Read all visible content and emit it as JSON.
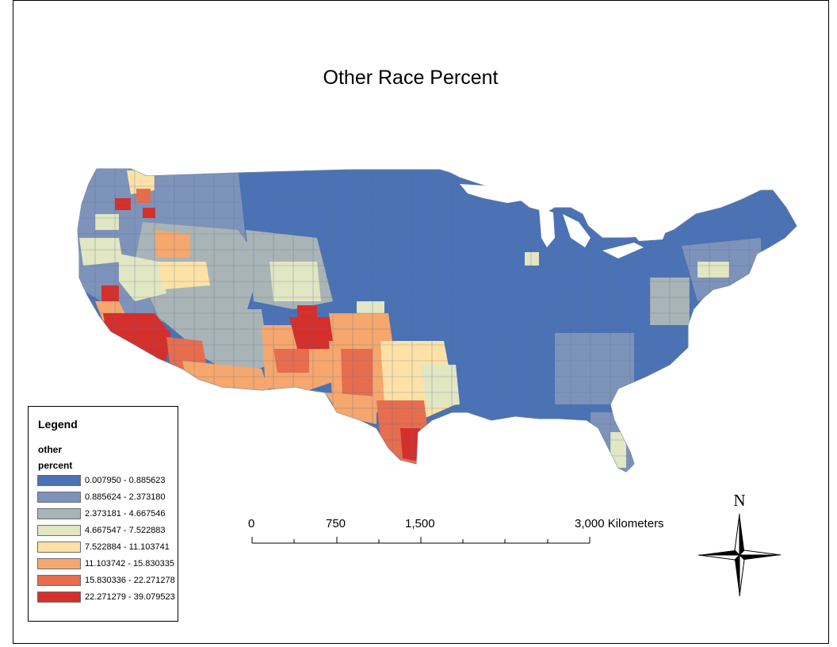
{
  "map": {
    "title": "Other Race Percent"
  },
  "legend": {
    "title": "Legend",
    "field_line1": "other",
    "field_line2": "percent",
    "classes": [
      {
        "label": "0.007950 - 0.885623",
        "color": "#4a72b5"
      },
      {
        "label": "0.885624 - 2.373180",
        "color": "#7d93ba"
      },
      {
        "label": "2.373181 - 4.667546",
        "color": "#a9b4b7"
      },
      {
        "label": "4.667547 - 7.522883",
        "color": "#e1e6c3"
      },
      {
        "label": "7.522884 - 11.103741",
        "color": "#fce2a6"
      },
      {
        "label": "11.103742 - 15.830335",
        "color": "#f5a76e"
      },
      {
        "label": "15.830336 - 22.271278",
        "color": "#e66d4e"
      },
      {
        "label": "22.271279 - 39.079523",
        "color": "#d52f2b"
      }
    ]
  },
  "scale_bar": {
    "labels": [
      "0",
      "750",
      "1,500",
      "3,000 Kilometers"
    ]
  },
  "north_arrow": {
    "label": "N"
  }
}
